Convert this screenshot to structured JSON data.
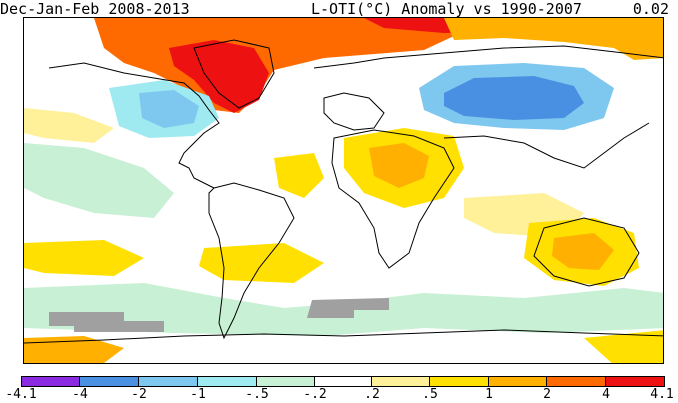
{
  "header": {
    "period": "Dec-Jan-Feb 2008-2013",
    "product": "L-OTI(°C) Anomaly vs 1990-2007",
    "mean": "0.02"
  },
  "legend": {
    "bins": [
      {
        "from": "-4.1",
        "to": "-4",
        "color": "#8a2be2"
      },
      {
        "from": "-4",
        "to": "-2",
        "color": "#4a90e2"
      },
      {
        "from": "-2",
        "to": "-1",
        "color": "#7ec8ef"
      },
      {
        "from": "-1",
        "to": "-.5",
        "color": "#9eeaf0"
      },
      {
        "from": "-.5",
        "to": "-.2",
        "color": "#c8f0d4"
      },
      {
        "from": "-.2",
        "to": ".2",
        "color": "#ffffff"
      },
      {
        "from": ".2",
        "to": ".5",
        "color": "#fff09a"
      },
      {
        "from": ".5",
        "to": "1",
        "color": "#ffe000"
      },
      {
        "from": "1",
        "to": "2",
        "color": "#ffb000"
      },
      {
        "from": "2",
        "to": "4",
        "color": "#ff6a00"
      },
      {
        "from": "4",
        "to": "4.1",
        "color": "#ee1111"
      }
    ],
    "tick_labels": [
      "-4.1",
      "-4",
      "-2",
      "-1",
      "-.5",
      "-.2",
      ".2",
      ".5",
      "1",
      "2",
      "4",
      "4.1"
    ]
  },
  "colors": {
    "missing": "#a0a0a0",
    "coast": "#000000",
    "extreme_warm": "#8b0000"
  }
}
